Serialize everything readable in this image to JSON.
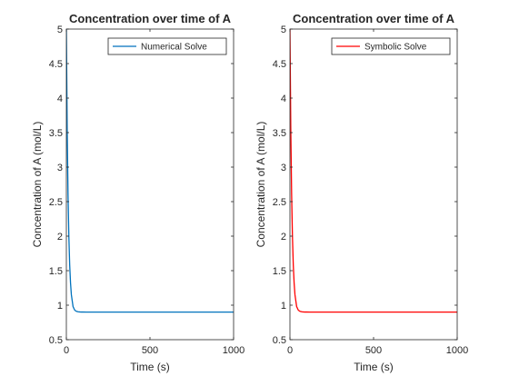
{
  "chart_data": [
    {
      "type": "line",
      "title": "Concentration over time of A",
      "xlabel": "Time (s)",
      "ylabel": "Concentration of A  (mol/L)",
      "xlim": [
        0,
        1000
      ],
      "ylim": [
        0.5,
        5
      ],
      "xticks": [
        0,
        500,
        1000
      ],
      "yticks": [
        0.5,
        1,
        1.5,
        2,
        2.5,
        3,
        3.5,
        4,
        4.5,
        5
      ],
      "ytick_labels": [
        "0.5",
        "1",
        "1.5",
        "2",
        "2.5",
        "3",
        "3.5",
        "4",
        "4.5",
        "5"
      ],
      "legend_position": "top-right",
      "grid": false,
      "series": [
        {
          "name": "Numerical Solve",
          "color": "#0072BD",
          "x": [
            0,
            5,
            10,
            15,
            20,
            25,
            30,
            40,
            50,
            60,
            70,
            80,
            90,
            100,
            120,
            140,
            160,
            180,
            200,
            250,
            300,
            400,
            500,
            600,
            700,
            800,
            900,
            1000
          ],
          "y": [
            5.0,
            3.56,
            2.61,
            1.99,
            1.58,
            1.32,
            1.15,
            0.98,
            0.928,
            0.911,
            0.905,
            0.902,
            0.9008,
            0.9003,
            0.90005,
            0.9,
            0.9,
            0.9,
            0.9,
            0.9,
            0.9,
            0.9,
            0.9,
            0.9,
            0.9,
            0.9,
            0.9,
            0.9
          ]
        }
      ]
    },
    {
      "type": "line",
      "title": "Concentration over time of A",
      "xlabel": "Time (s)",
      "ylabel": "Concentration of A  (mol/L)",
      "xlim": [
        0,
        1000
      ],
      "ylim": [
        0.5,
        5
      ],
      "xticks": [
        0,
        500,
        1000
      ],
      "yticks": [
        0.5,
        1,
        1.5,
        2,
        2.5,
        3,
        3.5,
        4,
        4.5,
        5
      ],
      "ytick_labels": [
        "0.5",
        "1",
        "1.5",
        "2",
        "2.5",
        "3",
        "3.5",
        "4",
        "4.5",
        "5"
      ],
      "legend_position": "top-right",
      "grid": false,
      "series": [
        {
          "name": "Symbolic Solve",
          "color": "#FF0000",
          "x": [
            0,
            5,
            10,
            15,
            20,
            25,
            30,
            40,
            50,
            60,
            70,
            80,
            90,
            100,
            120,
            140,
            160,
            180,
            200,
            250,
            300,
            400,
            500,
            600,
            700,
            800,
            900,
            1000
          ],
          "y": [
            5.0,
            3.56,
            2.61,
            1.99,
            1.58,
            1.32,
            1.15,
            0.98,
            0.928,
            0.911,
            0.905,
            0.902,
            0.9008,
            0.9003,
            0.90005,
            0.9,
            0.9,
            0.9,
            0.9,
            0.9,
            0.9,
            0.9,
            0.9,
            0.9,
            0.9,
            0.9,
            0.9,
            0.9
          ]
        }
      ]
    }
  ]
}
